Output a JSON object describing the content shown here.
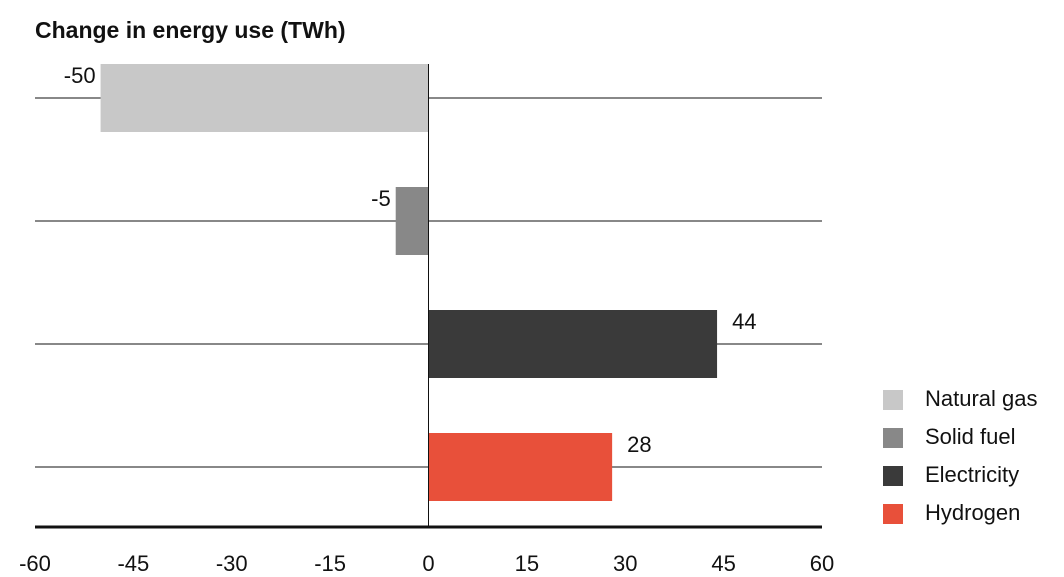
{
  "chart_data": {
    "type": "bar",
    "orientation": "horizontal",
    "title": "Change in energy use (TWh)",
    "categories": [
      "Natural gas",
      "Solid fuel",
      "Electricity",
      "Hydrogen"
    ],
    "values": [
      -50,
      -5,
      44,
      28
    ],
    "colors": [
      "#c8c8c8",
      "#888888",
      "#3a3a3a",
      "#e8503a"
    ],
    "xlim": [
      -60,
      60
    ],
    "xticks": [
      -60,
      -45,
      -30,
      -15,
      0,
      15,
      30,
      45,
      60
    ],
    "grid": true,
    "legend": "right"
  }
}
